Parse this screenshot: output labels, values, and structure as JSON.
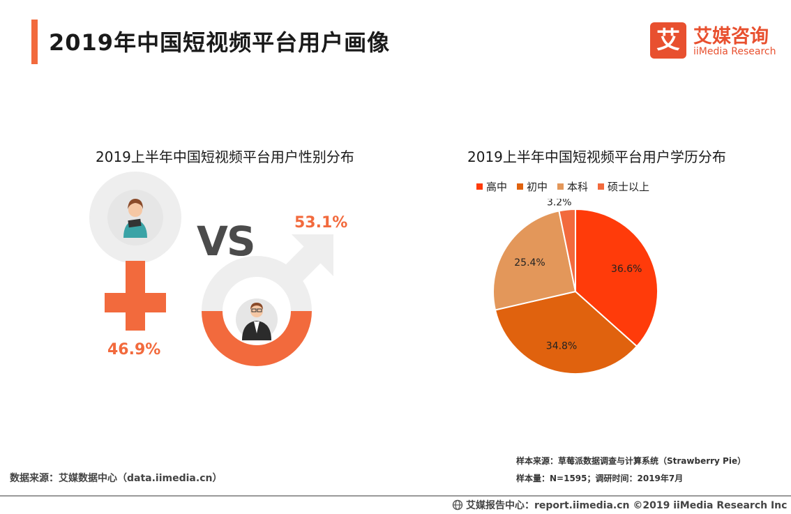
{
  "header": {
    "title": "2019年中国短视频平台用户画像",
    "logo_glyph": "艾",
    "logo_cn": "艾媒咨询",
    "logo_en": "iiMedia Research"
  },
  "colors": {
    "accent": "#f26a3d",
    "female_ring": "#eeeeee",
    "male_ring": "#f26a3d",
    "vs_text": "#4b4b4b"
  },
  "gender": {
    "title": "2019上半年中国短视频平台用户性别分布",
    "vs": "VS",
    "female_pct": "46.9%",
    "male_pct": "53.1%"
  },
  "chart_data": [
    {
      "type": "pie",
      "title": "2019上半年中国短视频平台用户性别分布",
      "categories": [
        "女",
        "男"
      ],
      "values": [
        46.9,
        53.1
      ]
    },
    {
      "type": "pie",
      "title": "2019上半年中国短视频平台用户学历分布",
      "categories": [
        "高中",
        "初中",
        "本科",
        "硕士以上"
      ],
      "values": [
        36.6,
        34.8,
        25.4,
        3.2
      ],
      "labels": [
        "36.6%",
        "34.8%",
        "25.4%",
        "3.2%"
      ],
      "colors": [
        "#ff3b0a",
        "#e0620e",
        "#e3975a",
        "#f26a3d"
      ],
      "legend": "top"
    }
  ],
  "footer": {
    "source_left": "数据来源：艾媒数据中心（data.iimedia.cn）",
    "sample_source": "样本来源：草莓派数据调查与计算系统（Strawberry Pie）",
    "sample_size": "样本量：N=1595；调研时间：2019年7月",
    "report_center": "艾媒报告中心：report.iimedia.cn ©2019 iiMedia Research Inc"
  }
}
